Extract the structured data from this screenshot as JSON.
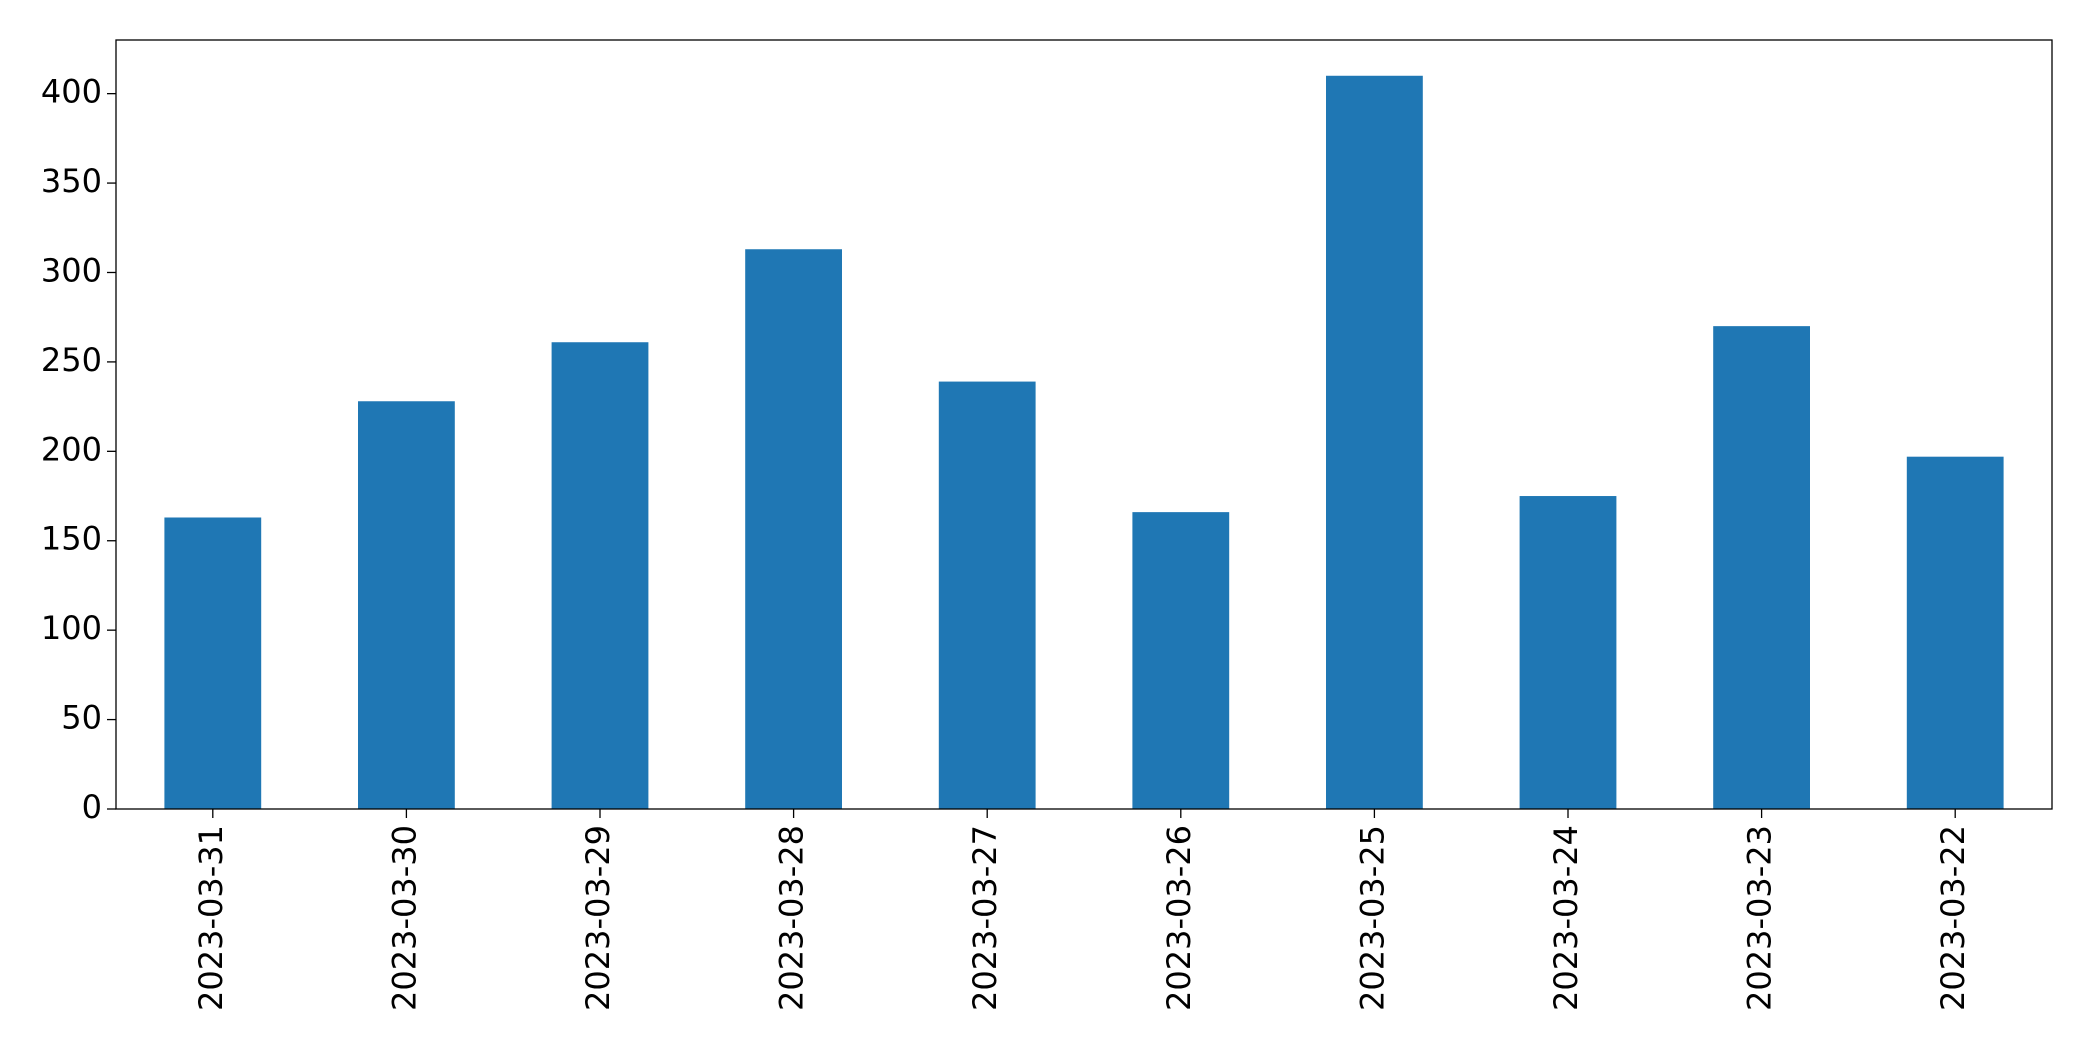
{
  "chart_data": {
    "type": "bar",
    "categories": [
      "2023-03-31",
      "2023-03-30",
      "2023-03-29",
      "2023-03-28",
      "2023-03-27",
      "2023-03-26",
      "2023-03-25",
      "2023-03-24",
      "2023-03-23",
      "2023-03-22"
    ],
    "values": [
      163,
      228,
      261,
      313,
      239,
      166,
      410,
      175,
      270,
      197
    ],
    "color": "#1f77b4",
    "ylim": [
      0,
      430
    ],
    "yticks": [
      0,
      50,
      100,
      150,
      200,
      250,
      300,
      350,
      400
    ],
    "grid": false
  }
}
